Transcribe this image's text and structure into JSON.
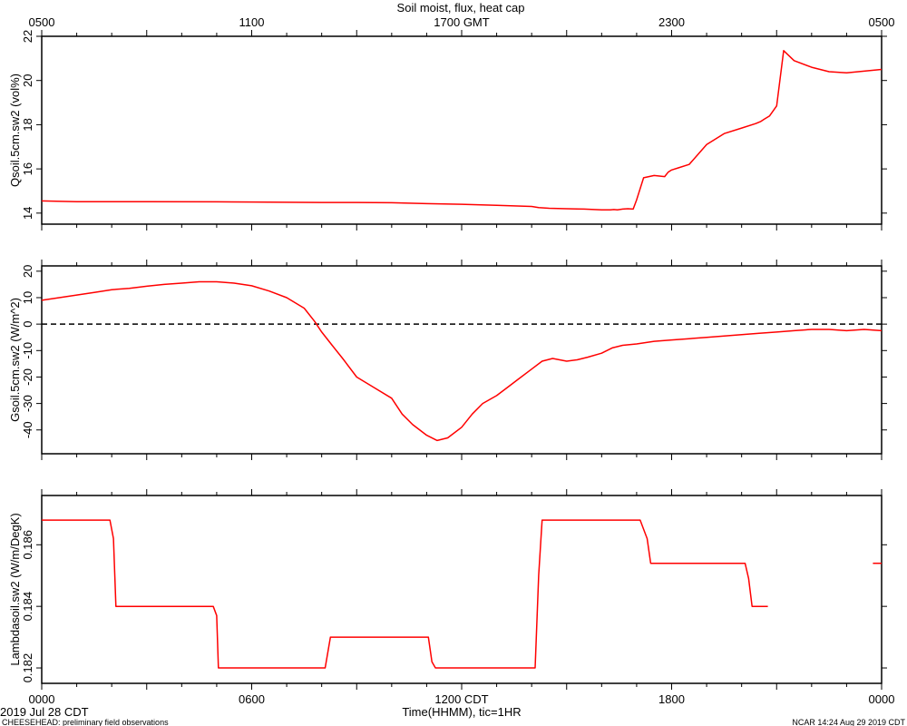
{
  "title": "Soil moist, flux, heat cap",
  "top_axis": {
    "ticks": [
      "0500",
      "1100",
      "1700 GMT",
      "2300",
      "0500"
    ]
  },
  "bottom_axis": {
    "ticks": [
      "0000",
      "0600",
      "1200 CDT",
      "1800",
      "0000"
    ],
    "xlabel": "Time(HHMM), tic=1HR"
  },
  "footer": {
    "date_label": "2019 Jul 28 CDT",
    "left_note": "CHEESEHEAD: preliminary field observations",
    "right_note": "NCAR 14:24 Aug 29 2019 CDT"
  },
  "chart_data": [
    {
      "type": "line",
      "ylabel": "Qsoil.5cm.sw2 (vol%)",
      "ylim": [
        13.5,
        22
      ],
      "yticks": [
        "14",
        "16",
        "18",
        "20",
        "22"
      ],
      "xlim": [
        0,
        24
      ],
      "series": [
        {
          "color": "#ff0000",
          "x": [
            0.0,
            1.0,
            3.0,
            5.0,
            6.0,
            7.0,
            8.0,
            9.0,
            10.0,
            11.0,
            12.0,
            13.0,
            14.0,
            14.2,
            14.5,
            15.0,
            15.5,
            16.0,
            16.25,
            16.35,
            16.45,
            16.6,
            16.75,
            16.9,
            17.0,
            17.2,
            17.5,
            17.8,
            17.9,
            18.0,
            18.2,
            18.5,
            19.0,
            19.5,
            20.0,
            20.4,
            20.55,
            20.65,
            20.8,
            21.0,
            21.2,
            21.5,
            22.0,
            22.5,
            23.0,
            24.0
          ],
          "y": [
            14.55,
            14.52,
            14.52,
            14.51,
            14.5,
            14.49,
            14.48,
            14.48,
            14.47,
            14.43,
            14.4,
            14.35,
            14.3,
            14.25,
            14.22,
            14.2,
            14.18,
            14.15,
            14.15,
            14.16,
            14.15,
            14.18,
            14.2,
            14.18,
            14.6,
            15.6,
            15.7,
            15.65,
            15.85,
            15.95,
            16.05,
            16.2,
            17.1,
            17.6,
            17.85,
            18.05,
            18.15,
            18.25,
            18.4,
            18.85,
            21.35,
            20.9,
            20.6,
            20.4,
            20.35,
            20.5
          ]
        }
      ]
    },
    {
      "type": "line",
      "ylabel": "Gsoil.5cm.sw2 (W/m^2)",
      "ylim": [
        -49,
        22
      ],
      "yticks": [
        "-40",
        "-30",
        "-20",
        "-10",
        "0",
        "10",
        "20"
      ],
      "xlim": [
        0,
        24
      ],
      "reference_line": {
        "y": 0,
        "style": "dashed"
      },
      "series": [
        {
          "color": "#ff0000",
          "x": [
            0.0,
            0.5,
            1.0,
            1.5,
            2.0,
            2.5,
            3.0,
            3.5,
            4.0,
            4.5,
            5.0,
            5.5,
            6.0,
            6.5,
            7.0,
            7.5,
            7.8,
            8.0,
            8.3,
            8.6,
            9.0,
            9.5,
            10.0,
            10.3,
            10.6,
            11.0,
            11.3,
            11.6,
            12.0,
            12.3,
            12.6,
            13.0,
            13.3,
            13.6,
            14.0,
            14.3,
            14.6,
            15.0,
            15.3,
            15.6,
            16.0,
            16.3,
            16.6,
            17.0,
            17.5,
            18.0,
            18.5,
            19.0,
            19.5,
            20.0,
            20.5,
            21.0,
            21.5,
            22.0,
            22.5,
            23.0,
            23.5,
            24.0
          ],
          "y": [
            9,
            10,
            11,
            12,
            13,
            13.5,
            14.3,
            15,
            15.5,
            16,
            16,
            15.5,
            14.5,
            12.5,
            10,
            6,
            1,
            -3,
            -8,
            -13,
            -20,
            -24,
            -28,
            -34,
            -38,
            -42,
            -44,
            -43,
            -39,
            -34,
            -30,
            -27,
            -24,
            -21,
            -17,
            -14,
            -13,
            -14,
            -13.5,
            -12.5,
            -11,
            -9,
            -8,
            -7.5,
            -6.5,
            -6,
            -5.5,
            -5,
            -4.5,
            -4,
            -3.5,
            -3,
            -2.5,
            -2,
            -2,
            -2.5,
            -2,
            -2.5
          ]
        }
      ]
    },
    {
      "type": "line",
      "ylabel": "Lambdasoil.sw2 (W/m/DegK)",
      "ylim": [
        0.1815,
        0.1876
      ],
      "yticks": [
        "0.182",
        "0.184",
        "0.186"
      ],
      "xlim": [
        0,
        24
      ],
      "series": [
        {
          "color": "#ff0000",
          "segments": [
            {
              "x": [
                0.0,
                1.95,
                2.05,
                2.12,
                4.9,
                5.0,
                5.05,
                8.1,
                8.25,
                11.05,
                11.15,
                11.25,
                14.1,
                14.2,
                14.3,
                17.1,
                17.3,
                17.4,
                20.1,
                20.2,
                20.3,
                20.75
              ],
              "y": [
                0.1868,
                0.1868,
                0.1862,
                0.184,
                0.184,
                0.1837,
                0.182,
                0.182,
                0.183,
                0.183,
                0.1822,
                0.182,
                0.182,
                0.185,
                0.1868,
                0.1868,
                0.1862,
                0.1854,
                0.1854,
                0.1849,
                0.184,
                0.184
              ]
            },
            {
              "x": [
                23.75,
                24.0
              ],
              "y": [
                0.1854,
                0.1854
              ]
            }
          ]
        }
      ]
    }
  ]
}
